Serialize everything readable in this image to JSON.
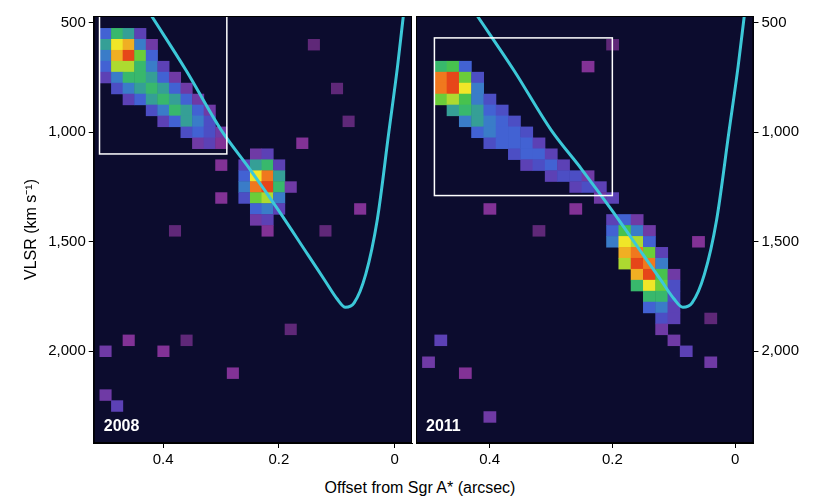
{
  "chart_data": [
    {
      "type": "heatmap",
      "annotation": "2008",
      "x_label": "Offset from Sgr A* (arcsec)",
      "y_label": "VLSR (km s⁻¹)",
      "xlim": [
        0.52,
        -0.03
      ],
      "ylim": [
        2420,
        470
      ],
      "xticks": [
        0.4,
        0.2,
        0
      ],
      "yticks": [
        500,
        {
          "value": 1000,
          "label": "1,000"
        },
        {
          "value": 1500,
          "label": "1,500"
        },
        {
          "value": 2000,
          "label": "2,000"
        }
      ],
      "grid": false,
      "tick_labels": true,
      "bin_size": [
        0.02,
        50
      ],
      "cells": [
        [
          0.5,
          550,
          0.45
        ],
        [
          0.48,
          550,
          0.6
        ],
        [
          0.46,
          550,
          0.55
        ],
        [
          0.44,
          550,
          0.35
        ],
        [
          0.5,
          600,
          0.55
        ],
        [
          0.48,
          600,
          0.8
        ],
        [
          0.46,
          600,
          0.85
        ],
        [
          0.44,
          600,
          0.5
        ],
        [
          0.42,
          600,
          0.3
        ],
        [
          0.5,
          650,
          0.5
        ],
        [
          0.48,
          650,
          0.85
        ],
        [
          0.46,
          650,
          0.95
        ],
        [
          0.44,
          650,
          0.7
        ],
        [
          0.42,
          650,
          0.45
        ],
        [
          0.5,
          700,
          0.45
        ],
        [
          0.48,
          700,
          0.75
        ],
        [
          0.46,
          700,
          0.75
        ],
        [
          0.44,
          700,
          0.6
        ],
        [
          0.42,
          700,
          0.5
        ],
        [
          0.4,
          700,
          0.35
        ],
        [
          0.5,
          750,
          0.35
        ],
        [
          0.48,
          750,
          0.5
        ],
        [
          0.46,
          750,
          0.6
        ],
        [
          0.44,
          750,
          0.6
        ],
        [
          0.42,
          750,
          0.55
        ],
        [
          0.4,
          750,
          0.45
        ],
        [
          0.38,
          750,
          0.3
        ],
        [
          0.48,
          800,
          0.4
        ],
        [
          0.46,
          800,
          0.5
        ],
        [
          0.44,
          800,
          0.55
        ],
        [
          0.42,
          800,
          0.6
        ],
        [
          0.4,
          800,
          0.55
        ],
        [
          0.38,
          800,
          0.45
        ],
        [
          0.36,
          800,
          0.3
        ],
        [
          0.46,
          850,
          0.35
        ],
        [
          0.44,
          850,
          0.45
        ],
        [
          0.42,
          850,
          0.55
        ],
        [
          0.4,
          850,
          0.6
        ],
        [
          0.38,
          850,
          0.55
        ],
        [
          0.36,
          850,
          0.45
        ],
        [
          0.34,
          850,
          0.3
        ],
        [
          0.42,
          900,
          0.4
        ],
        [
          0.4,
          900,
          0.5
        ],
        [
          0.38,
          900,
          0.6
        ],
        [
          0.36,
          900,
          0.55
        ],
        [
          0.34,
          900,
          0.45
        ],
        [
          0.32,
          900,
          0.3
        ],
        [
          0.4,
          950,
          0.35
        ],
        [
          0.38,
          950,
          0.45
        ],
        [
          0.36,
          950,
          0.55
        ],
        [
          0.34,
          950,
          0.5
        ],
        [
          0.32,
          950,
          0.4
        ],
        [
          0.36,
          1000,
          0.4
        ],
        [
          0.34,
          1000,
          0.45
        ],
        [
          0.32,
          1000,
          0.4
        ],
        [
          0.3,
          1000,
          0.3
        ],
        [
          0.34,
          1050,
          0.3
        ],
        [
          0.32,
          1050,
          0.35
        ],
        [
          0.3,
          1050,
          0.25
        ],
        [
          0.24,
          1100,
          0.3
        ],
        [
          0.22,
          1100,
          0.35
        ],
        [
          0.26,
          1150,
          0.35
        ],
        [
          0.24,
          1150,
          0.55
        ],
        [
          0.22,
          1150,
          0.6
        ],
        [
          0.2,
          1150,
          0.35
        ],
        [
          0.26,
          1200,
          0.45
        ],
        [
          0.24,
          1200,
          0.8
        ],
        [
          0.22,
          1200,
          0.9
        ],
        [
          0.2,
          1200,
          0.55
        ],
        [
          0.26,
          1250,
          0.5
        ],
        [
          0.24,
          1250,
          0.9
        ],
        [
          0.22,
          1250,
          0.95
        ],
        [
          0.2,
          1250,
          0.6
        ],
        [
          0.18,
          1250,
          0.3
        ],
        [
          0.26,
          1300,
          0.4
        ],
        [
          0.24,
          1300,
          0.7
        ],
        [
          0.22,
          1300,
          0.75
        ],
        [
          0.2,
          1300,
          0.5
        ],
        [
          0.24,
          1350,
          0.45
        ],
        [
          0.22,
          1350,
          0.5
        ],
        [
          0.2,
          1350,
          0.35
        ],
        [
          0.24,
          1400,
          0.3
        ],
        [
          0.22,
          1400,
          0.35
        ],
        [
          0.22,
          1450,
          0.25
        ],
        [
          0.16,
          1050,
          0.25
        ],
        [
          0.08,
          950,
          0.2
        ],
        [
          0.12,
          1450,
          0.2
        ],
        [
          0.3,
          1300,
          0.25
        ],
        [
          0.46,
          1950,
          0.25
        ],
        [
          0.5,
          2000,
          0.3
        ],
        [
          0.4,
          2000,
          0.25
        ],
        [
          0.36,
          1950,
          0.2
        ],
        [
          0.28,
          2100,
          0.25
        ],
        [
          0.5,
          2200,
          0.3
        ],
        [
          0.48,
          2250,
          0.35
        ],
        [
          0.18,
          1900,
          0.2
        ],
        [
          0.06,
          1350,
          0.25
        ],
        [
          0.14,
          600,
          0.2
        ],
        [
          0.1,
          800,
          0.2
        ],
        [
          0.3,
          1150,
          0.25
        ],
        [
          0.38,
          1450,
          0.2
        ]
      ],
      "curve": {
        "color": "#3cc8d8",
        "x": [
          0.42,
          0.36,
          0.3,
          0.25,
          0.2,
          0.15,
          0.12,
          0.1,
          0.085,
          0.07,
          0.05,
          0.03,
          0.01,
          -0.005,
          -0.015
        ],
        "y": [
          470,
          720,
          990,
          1170,
          1360,
          1560,
          1680,
          1760,
          1800,
          1780,
          1650,
          1400,
          1000,
          700,
          470
        ]
      },
      "boxes": [
        {
          "xlim": [
            0.51,
            0.29
          ],
          "ylim": [
            1100,
            470
          ],
          "color": "#ffffff"
        }
      ]
    },
    {
      "type": "heatmap",
      "annotation": "2011",
      "xlim": [
        0.52,
        -0.03
      ],
      "ylim": [
        2420,
        470
      ],
      "xticks": [
        0.4,
        0.2,
        0
      ],
      "yticks": [
        500,
        {
          "value": 1000,
          "label": "1,000"
        },
        {
          "value": 1500,
          "label": "1,500"
        },
        {
          "value": 2000,
          "label": "2,000"
        }
      ],
      "grid": false,
      "tick_labels": true,
      "bin_size": [
        0.02,
        50
      ],
      "cells": [
        [
          0.48,
          700,
          0.6
        ],
        [
          0.46,
          700,
          0.65
        ],
        [
          0.44,
          700,
          0.45
        ],
        [
          0.48,
          750,
          0.9
        ],
        [
          0.46,
          750,
          0.95
        ],
        [
          0.44,
          750,
          0.7
        ],
        [
          0.42,
          750,
          0.4
        ],
        [
          0.48,
          800,
          0.9
        ],
        [
          0.46,
          800,
          0.95
        ],
        [
          0.44,
          800,
          0.8
        ],
        [
          0.42,
          800,
          0.5
        ],
        [
          0.48,
          850,
          0.7
        ],
        [
          0.46,
          850,
          0.75
        ],
        [
          0.44,
          850,
          0.65
        ],
        [
          0.42,
          850,
          0.5
        ],
        [
          0.4,
          850,
          0.4
        ],
        [
          0.46,
          900,
          0.55
        ],
        [
          0.44,
          900,
          0.6
        ],
        [
          0.42,
          900,
          0.55
        ],
        [
          0.4,
          900,
          0.45
        ],
        [
          0.38,
          900,
          0.4
        ],
        [
          0.44,
          950,
          0.5
        ],
        [
          0.42,
          950,
          0.55
        ],
        [
          0.4,
          950,
          0.5
        ],
        [
          0.38,
          950,
          0.45
        ],
        [
          0.36,
          950,
          0.4
        ],
        [
          0.42,
          1000,
          0.45
        ],
        [
          0.4,
          1000,
          0.5
        ],
        [
          0.38,
          1000,
          0.45
        ],
        [
          0.36,
          1000,
          0.45
        ],
        [
          0.34,
          1000,
          0.4
        ],
        [
          0.4,
          1050,
          0.4
        ],
        [
          0.38,
          1050,
          0.45
        ],
        [
          0.36,
          1050,
          0.45
        ],
        [
          0.34,
          1050,
          0.45
        ],
        [
          0.32,
          1050,
          0.35
        ],
        [
          0.36,
          1100,
          0.4
        ],
        [
          0.34,
          1100,
          0.45
        ],
        [
          0.32,
          1100,
          0.45
        ],
        [
          0.3,
          1100,
          0.35
        ],
        [
          0.34,
          1150,
          0.35
        ],
        [
          0.32,
          1150,
          0.4
        ],
        [
          0.3,
          1150,
          0.45
        ],
        [
          0.28,
          1150,
          0.35
        ],
        [
          0.3,
          1200,
          0.35
        ],
        [
          0.28,
          1200,
          0.4
        ],
        [
          0.26,
          1200,
          0.4
        ],
        [
          0.24,
          1200,
          0.3
        ],
        [
          0.26,
          1250,
          0.35
        ],
        [
          0.24,
          1250,
          0.4
        ],
        [
          0.22,
          1250,
          0.35
        ],
        [
          0.22,
          1300,
          0.3
        ],
        [
          0.2,
          1300,
          0.35
        ],
        [
          0.2,
          1400,
          0.35
        ],
        [
          0.18,
          1400,
          0.45
        ],
        [
          0.16,
          1400,
          0.3
        ],
        [
          0.2,
          1450,
          0.45
        ],
        [
          0.18,
          1450,
          0.65
        ],
        [
          0.16,
          1450,
          0.5
        ],
        [
          0.14,
          1450,
          0.3
        ],
        [
          0.2,
          1500,
          0.5
        ],
        [
          0.18,
          1500,
          0.8
        ],
        [
          0.16,
          1500,
          0.75
        ],
        [
          0.14,
          1500,
          0.45
        ],
        [
          0.18,
          1550,
          0.85
        ],
        [
          0.16,
          1550,
          0.9
        ],
        [
          0.14,
          1550,
          0.7
        ],
        [
          0.12,
          1550,
          0.35
        ],
        [
          0.18,
          1600,
          0.75
        ],
        [
          0.16,
          1600,
          0.95
        ],
        [
          0.14,
          1600,
          0.9
        ],
        [
          0.12,
          1600,
          0.5
        ],
        [
          0.16,
          1650,
          0.85
        ],
        [
          0.14,
          1650,
          0.95
        ],
        [
          0.12,
          1650,
          0.65
        ],
        [
          0.1,
          1650,
          0.3
        ],
        [
          0.16,
          1700,
          0.6
        ],
        [
          0.14,
          1700,
          0.8
        ],
        [
          0.12,
          1700,
          0.7
        ],
        [
          0.1,
          1700,
          0.4
        ],
        [
          0.14,
          1750,
          0.6
        ],
        [
          0.12,
          1750,
          0.6
        ],
        [
          0.1,
          1750,
          0.4
        ],
        [
          0.14,
          1800,
          0.45
        ],
        [
          0.12,
          1800,
          0.5
        ],
        [
          0.1,
          1800,
          0.35
        ],
        [
          0.12,
          1850,
          0.4
        ],
        [
          0.1,
          1850,
          0.35
        ],
        [
          0.12,
          1900,
          0.3
        ],
        [
          0.1,
          1950,
          0.3
        ],
        [
          0.32,
          1450,
          0.2
        ],
        [
          0.26,
          1350,
          0.25
        ],
        [
          0.4,
          1350,
          0.25
        ],
        [
          0.24,
          700,
          0.25
        ],
        [
          0.2,
          600,
          0.2
        ],
        [
          0.06,
          1500,
          0.25
        ],
        [
          0.04,
          1850,
          0.2
        ],
        [
          0.48,
          1950,
          0.35
        ],
        [
          0.5,
          2050,
          0.3
        ],
        [
          0.44,
          2100,
          0.25
        ],
        [
          0.4,
          2300,
          0.3
        ],
        [
          0.08,
          2000,
          0.35
        ],
        [
          0.04,
          2050,
          0.3
        ]
      ],
      "curve": {
        "color": "#3cc8d8",
        "x": [
          0.42,
          0.36,
          0.3,
          0.25,
          0.2,
          0.15,
          0.12,
          0.1,
          0.085,
          0.07,
          0.05,
          0.03,
          0.01,
          -0.005,
          -0.015
        ],
        "y": [
          470,
          720,
          990,
          1170,
          1360,
          1560,
          1680,
          1760,
          1800,
          1780,
          1650,
          1400,
          1000,
          700,
          470
        ]
      },
      "boxes": [
        {
          "xlim": [
            0.49,
            0.2
          ],
          "ylim": [
            1290,
            570
          ],
          "color": "#ffffff"
        }
      ]
    }
  ]
}
